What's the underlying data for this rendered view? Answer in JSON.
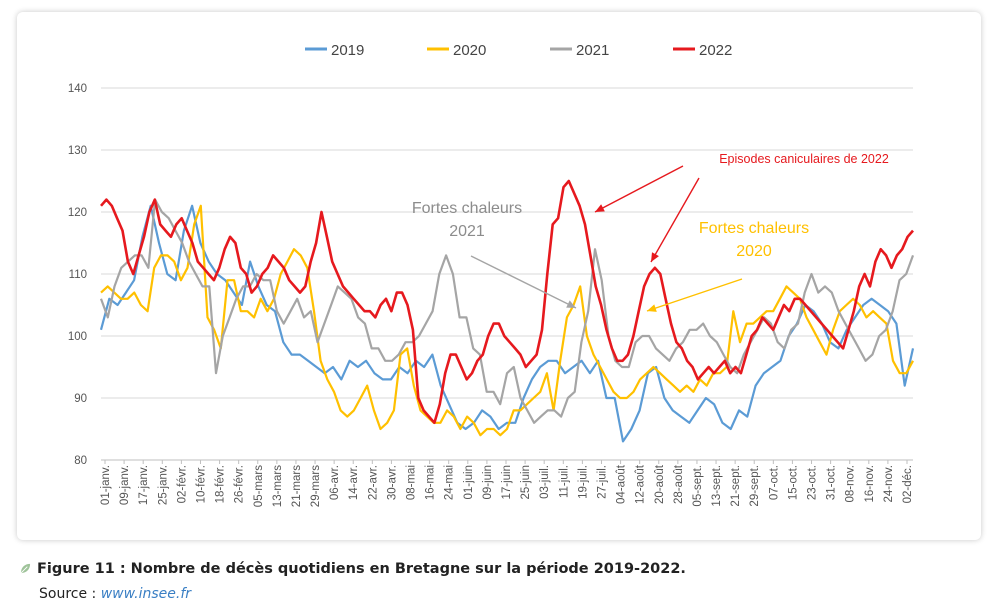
{
  "caption": {
    "title": "Figure 11 : Nombre de décès quotidiens en Bretagne sur la période 2019-2022.",
    "source_label": "Source : ",
    "source_link": "www.insee.fr"
  },
  "chart_data": {
    "type": "line",
    "title": "",
    "xlabel": "",
    "ylabel": "",
    "ylim": [
      80,
      140
    ],
    "yticks": [
      80,
      90,
      100,
      110,
      120,
      130,
      140
    ],
    "grid": true,
    "legend_position": "top",
    "x_tick_labels": [
      "01-janv.",
      "09-janv.",
      "17-janv.",
      "25-janv.",
      "02-févr.",
      "10-févr.",
      "18-févr.",
      "26-févr.",
      "05-mars",
      "13-mars",
      "21-mars",
      "29-mars",
      "06-avr.",
      "14-avr.",
      "22-avr.",
      "30-avr.",
      "08-mai",
      "16-mai",
      "24-mai",
      "01-juin",
      "09-juin",
      "17-juin",
      "25-juin",
      "03-juil.",
      "11-juil.",
      "19-juil.",
      "27-juil.",
      "04-août",
      "12-août",
      "20-août",
      "28-août",
      "05-sept.",
      "13-sept.",
      "21-sept.",
      "29-sept.",
      "07-oct.",
      "15-oct.",
      "23-oct.",
      "31-oct.",
      "08-nov.",
      "16-nov.",
      "24-nov.",
      "02-déc."
    ],
    "series": [
      {
        "name": "2019",
        "color": "#5b9bd5",
        "values": [
          101,
          106,
          105,
          107,
          109,
          116,
          121,
          115,
          110,
          109,
          117,
          121,
          115,
          112,
          110,
          109,
          107,
          105,
          112,
          108,
          105,
          104,
          99,
          97,
          97,
          96,
          95,
          94,
          95,
          93,
          96,
          95,
          96,
          94,
          93,
          93,
          95,
          94,
          96,
          95,
          97,
          92,
          89,
          86,
          85,
          86,
          88,
          87,
          85,
          86,
          86,
          90,
          93,
          95,
          96,
          96,
          94,
          95,
          96,
          94,
          96,
          90,
          90,
          83,
          85,
          88,
          94,
          95,
          90,
          88,
          87,
          86,
          88,
          90,
          89,
          86,
          85,
          88,
          87,
          92,
          94,
          95,
          96,
          100,
          102,
          105,
          104,
          102,
          99,
          98,
          101,
          103,
          105,
          106,
          105,
          104,
          102,
          92,
          98
        ]
      },
      {
        "name": "2020",
        "color": "#ffc000",
        "values": [
          107,
          108,
          107,
          106,
          106,
          107,
          105,
          104,
          111,
          113,
          113,
          112,
          109,
          111,
          118,
          121,
          103,
          101,
          98,
          109,
          109,
          104,
          104,
          103,
          106,
          104,
          106,
          110,
          112,
          114,
          113,
          111,
          104,
          96,
          93,
          91,
          88,
          87,
          88,
          90,
          92,
          88,
          85,
          86,
          88,
          97,
          98,
          92,
          88,
          87,
          86,
          86,
          88,
          87,
          85,
          87,
          86,
          84,
          85,
          85,
          84,
          85,
          88,
          88,
          89,
          90,
          91,
          94,
          88,
          96,
          103,
          105,
          108,
          100,
          97,
          95,
          93,
          91,
          90,
          90,
          91,
          93,
          94,
          95,
          94,
          93,
          92,
          91,
          92,
          91,
          93,
          92,
          94,
          94,
          95,
          104,
          99,
          102,
          102,
          103,
          104,
          104,
          106,
          108,
          107,
          106,
          103,
          101,
          99,
          97,
          101,
          104,
          105,
          106,
          105,
          103,
          104,
          103,
          102,
          96,
          94,
          94,
          96
        ]
      },
      {
        "name": "2021",
        "color": "#a5a5a5",
        "values": [
          106,
          103,
          108,
          111,
          112,
          113,
          113,
          111,
          122,
          120,
          119,
          117,
          115,
          112,
          110,
          108,
          108,
          94,
          100,
          103,
          106,
          108,
          108,
          110,
          109,
          109,
          104,
          102,
          104,
          106,
          103,
          104,
          99,
          102,
          105,
          108,
          107,
          106,
          103,
          102,
          98,
          98,
          96,
          96,
          97,
          99,
          99,
          100,
          102,
          104,
          110,
          113,
          110,
          103,
          103,
          98,
          97,
          91,
          91,
          89,
          94,
          95,
          90,
          88,
          86,
          87,
          88,
          88,
          87,
          90,
          91,
          99,
          104,
          114,
          109,
          100,
          96,
          95,
          95,
          99,
          100,
          100,
          98,
          97,
          96,
          98,
          99,
          101,
          101,
          102,
          100,
          99,
          97,
          95,
          94,
          97,
          99,
          101,
          103,
          102,
          99,
          98,
          101,
          102,
          107,
          110,
          107,
          108,
          107,
          104,
          102,
          100,
          98,
          96,
          97,
          100,
          101,
          104,
          109,
          110,
          113
        ]
      },
      {
        "name": "2022",
        "color": "#e6191e",
        "values": [
          121,
          122,
          121,
          119,
          117,
          112,
          110,
          113,
          116,
          120,
          122,
          118,
          117,
          116,
          118,
          119,
          117,
          115,
          112,
          111,
          110,
          109,
          111,
          114,
          116,
          115,
          111,
          110,
          107,
          108,
          110,
          111,
          113,
          112,
          111,
          109,
          108,
          107,
          108,
          112,
          115,
          120,
          116,
          112,
          110,
          108,
          107,
          106,
          105,
          104,
          104,
          103,
          105,
          106,
          104,
          107,
          107,
          105,
          101,
          90,
          88,
          87,
          86,
          89,
          94,
          97,
          97,
          95,
          93,
          94,
          96,
          97,
          100,
          102,
          102,
          100,
          99,
          98,
          97,
          95,
          96,
          97,
          101,
          110,
          118,
          119,
          124,
          125,
          123,
          121,
          118,
          113,
          108,
          105,
          101,
          98,
          96,
          96,
          97,
          100,
          104,
          108,
          110,
          111,
          110,
          106,
          102,
          99,
          98,
          96,
          95,
          93,
          94,
          95,
          94,
          95,
          96,
          94,
          95,
          94,
          97,
          100,
          101,
          103,
          102,
          101,
          103,
          105,
          104,
          106,
          106,
          105,
          104,
          103,
          102,
          101,
          100,
          99,
          98,
          101,
          104,
          108,
          110,
          108,
          112,
          114,
          113,
          111,
          113,
          114,
          116,
          117
        ]
      }
    ],
    "annotations": [
      {
        "text": [
          "Episodes caniculaires de 2022"
        ],
        "color": "#e6191e"
      },
      {
        "text": [
          "Fortes chaleurs",
          "2021"
        ],
        "color": "#8c8c8c"
      },
      {
        "text": [
          "Fortes chaleurs",
          "2020"
        ],
        "color": "#ffc000"
      }
    ]
  }
}
